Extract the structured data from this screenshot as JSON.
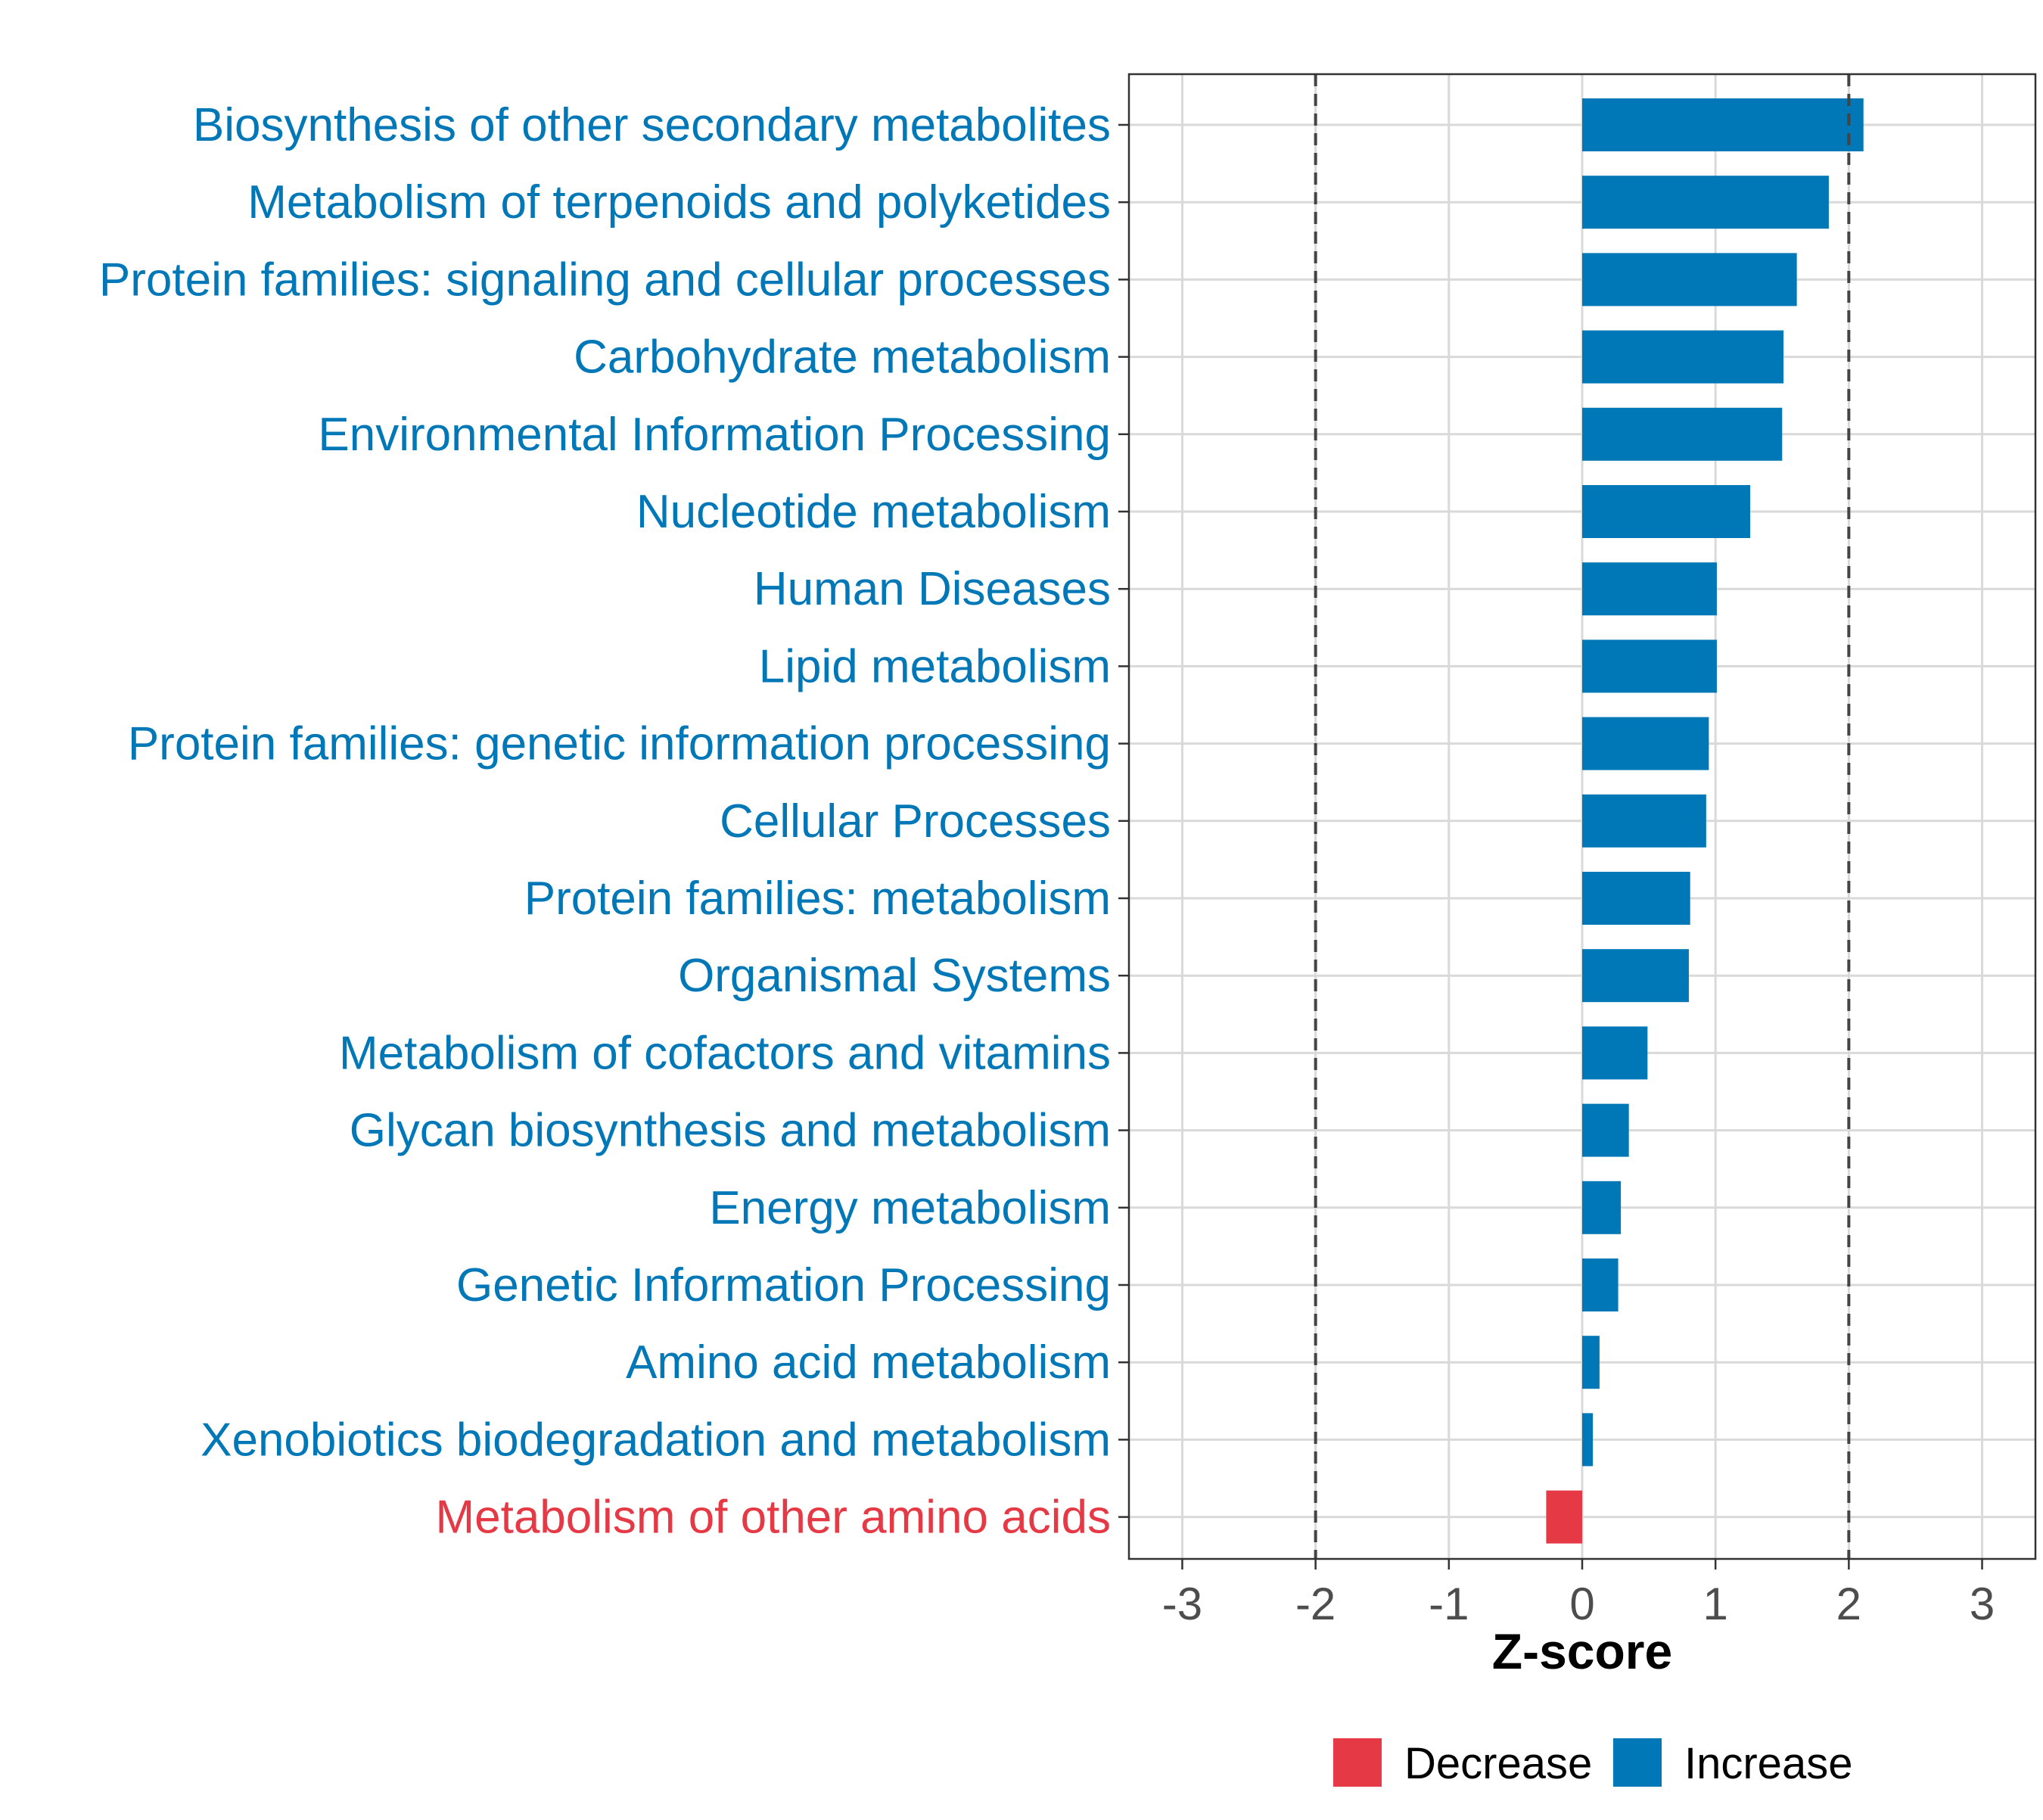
{
  "colors": {
    "increase": "#0077b6",
    "decrease": "#e63946",
    "grid": "#d9d9d9",
    "threshold": "#444444",
    "panel_border": "#333333"
  },
  "chart_data": {
    "type": "bar",
    "orientation": "horizontal",
    "xlabel": "Z-score",
    "xlim": [
      -3.4,
      3.4
    ],
    "xticks": [
      -3,
      -2,
      -1,
      0,
      1,
      2,
      3
    ],
    "xtick_labels": [
      "-3",
      "-2",
      "-1",
      "0",
      "1",
      "2",
      "3"
    ],
    "thresholds": [
      -2,
      2
    ],
    "grid": true,
    "categories": [
      "Biosynthesis of other secondary metabolites",
      "Metabolism of terpenoids and polyketides",
      "Protein families: signaling and cellular processes",
      "Carbohydrate metabolism",
      "Environmental Information Processing",
      "Nucleotide metabolism",
      "Human Diseases",
      "Lipid metabolism",
      "Protein families: genetic information processing",
      "Cellular Processes",
      "Protein families: metabolism",
      "Organismal Systems",
      "Metabolism of cofactors and vitamins",
      "Glycan biosynthesis and metabolism",
      "Energy metabolism",
      "Genetic Information Processing",
      "Amino acid metabolism",
      "Xenobiotics biodegradation and metabolism",
      "Metabolism of other amino acids"
    ],
    "values": [
      2.11,
      1.85,
      1.61,
      1.51,
      1.5,
      1.26,
      1.01,
      1.01,
      0.95,
      0.93,
      0.81,
      0.8,
      0.49,
      0.35,
      0.29,
      0.27,
      0.13,
      0.08,
      -0.27
    ],
    "groups": [
      "Increase",
      "Increase",
      "Increase",
      "Increase",
      "Increase",
      "Increase",
      "Increase",
      "Increase",
      "Increase",
      "Increase",
      "Increase",
      "Increase",
      "Increase",
      "Increase",
      "Increase",
      "Increase",
      "Increase",
      "Increase",
      "Decrease"
    ],
    "legend": {
      "position": "bottom",
      "entries": [
        {
          "label": "Decrease",
          "color": "#e63946"
        },
        {
          "label": "Increase",
          "color": "#0077b6"
        }
      ]
    }
  }
}
